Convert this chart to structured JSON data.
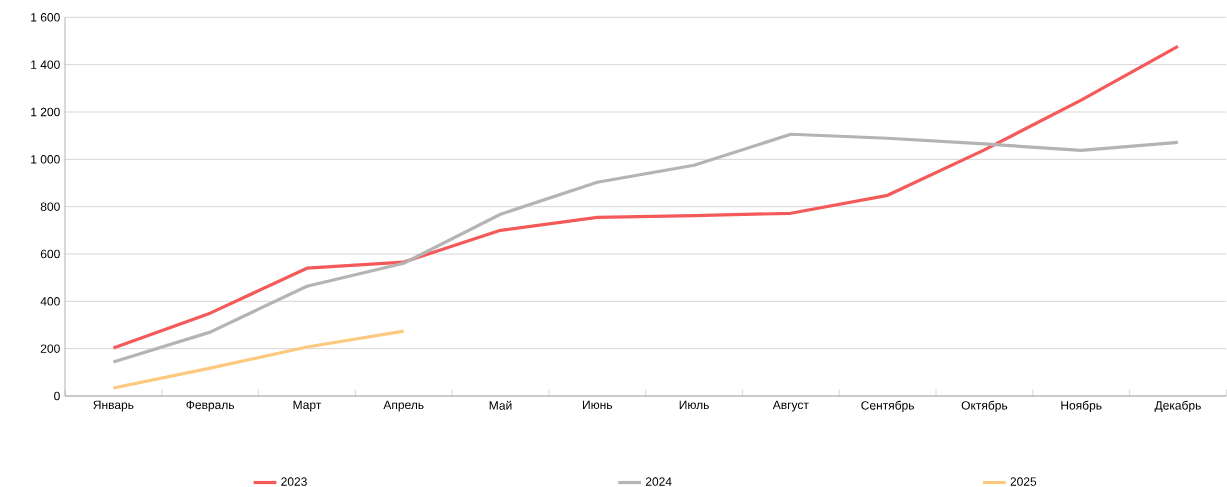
{
  "chart_data": {
    "type": "line",
    "categories": [
      "Январь",
      "Февраль",
      "Март",
      "Апрель",
      "Май",
      "Июнь",
      "Июль",
      "Август",
      "Сентябрь",
      "Октябрь",
      "Ноябрь",
      "Декабрь"
    ],
    "series": [
      {
        "name": "2023",
        "color": "#f45a5a",
        "values": [
          203,
          350,
          540,
          566,
          700,
          755,
          762,
          772,
          848,
          1040,
          1250,
          1477
        ]
      },
      {
        "name": "2024",
        "color": "#b4b4b4",
        "values": [
          144,
          270,
          464,
          561,
          768,
          903,
          975,
          1106,
          1089,
          1065,
          1038,
          1072
        ]
      },
      {
        "name": "2025",
        "color": "#fdc97e",
        "values": [
          34,
          118,
          207,
          274,
          null,
          null,
          null,
          null,
          null,
          null,
          null,
          null
        ]
      }
    ],
    "ylim": [
      0,
      1600
    ],
    "yticks": [
      0,
      200,
      400,
      600,
      800,
      {
        "value": 1000,
        "label": "1 000"
      },
      {
        "value": 1200,
        "label": "1 200"
      },
      {
        "value": 1400,
        "label": "1 400"
      },
      {
        "value": 1600,
        "label": "1 600"
      }
    ],
    "grid": "y",
    "legend": "bottom",
    "marker": "none",
    "line_style": "solid"
  }
}
